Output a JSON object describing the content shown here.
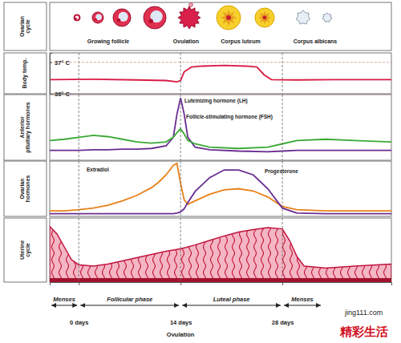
{
  "ovarian_cycle": {
    "label": "Ovarian cycle",
    "stages": [
      "Growing follicle",
      "Ovulation",
      "Corpus luteum",
      "Corpus albicans"
    ]
  },
  "chart_data": [
    {
      "type": "line",
      "ylabel": "Body temp.",
      "x": [
        -4,
        2,
        8,
        12,
        13.5,
        14,
        14.5,
        15.5,
        17,
        20,
        23,
        24.5,
        25.5,
        26.5,
        30,
        35,
        43
      ],
      "series": [
        {
          "color": "#d81b45",
          "values": [
            36.45,
            36.46,
            36.44,
            36.42,
            36.38,
            36.42,
            36.7,
            36.85,
            36.88,
            36.9,
            36.88,
            36.85,
            36.6,
            36.45,
            36.44,
            36.45,
            36.45
          ]
        }
      ],
      "xlim": [
        -4,
        43
      ],
      "xticks": [
        0,
        14,
        28
      ],
      "ylim": [
        36,
        37.3
      ],
      "yticks": [
        {
          "value": 37,
          "label": "37° C"
        },
        {
          "value": 36,
          "label": "36° C"
        }
      ],
      "grid": true,
      "tick_labels": "y"
    },
    {
      "type": "line",
      "ylabel": "Anterior pituitary hormones",
      "x": [
        -4,
        -2,
        0,
        2,
        4,
        6,
        8,
        10,
        12,
        13,
        13.5,
        14,
        14.5,
        15,
        16,
        18,
        22,
        26,
        28,
        30,
        34,
        38,
        43
      ],
      "series": [
        {
          "name": "Luteinizing hormone (LH)",
          "color": "#6a2c91",
          "values": [
            15,
            15,
            15,
            16,
            16,
            17,
            17,
            18,
            22,
            35,
            70,
            95,
            70,
            35,
            20,
            16,
            14,
            13,
            14,
            15,
            15,
            15,
            15
          ]
        },
        {
          "name": "Follicle-stimulating hormone (FSH)",
          "color": "#3aa935",
          "values": [
            30,
            32,
            35,
            38,
            36,
            32,
            28,
            26,
            28,
            35,
            42,
            48,
            40,
            30,
            25,
            20,
            18,
            20,
            25,
            30,
            32,
            30,
            28
          ]
        }
      ],
      "xlim": [
        -4,
        43
      ],
      "xticks": [
        0,
        14,
        28
      ],
      "ylim": [
        0,
        100
      ],
      "grid": true,
      "tick_labels": false
    },
    {
      "type": "line",
      "ylabel": "Ovarian hormones",
      "x": [
        -4,
        -2,
        0,
        2,
        4,
        6,
        8,
        10,
        11,
        12,
        13,
        13.5,
        14,
        14.5,
        15,
        16,
        18,
        20,
        22,
        24,
        26,
        28,
        30,
        34,
        38,
        43
      ],
      "series": [
        {
          "name": "Extradiol",
          "color": "#e8811a",
          "values": [
            10,
            10,
            12,
            15,
            20,
            28,
            38,
            52,
            62,
            75,
            92,
            96,
            60,
            30,
            22,
            28,
            40,
            48,
            50,
            46,
            35,
            18,
            12,
            10,
            10,
            10
          ]
        },
        {
          "name": "Progesterone",
          "color": "#6a2c91",
          "values": [
            5,
            5,
            5,
            5,
            5,
            5,
            5,
            5,
            5,
            5,
            5,
            6,
            8,
            14,
            25,
            45,
            70,
            84,
            84,
            75,
            50,
            15,
            6,
            5,
            5,
            5
          ]
        }
      ],
      "xlim": [
        -4,
        43
      ],
      "xticks": [
        0,
        14,
        28
      ],
      "ylim": [
        0,
        100
      ],
      "grid": true,
      "tick_labels": false
    },
    {
      "type": "area",
      "ylabel": "Uterine cycle",
      "x": [
        -4,
        -3,
        -2,
        -1,
        0,
        2,
        4,
        6,
        8,
        10,
        12,
        14,
        16,
        18,
        20,
        22,
        24,
        26,
        28,
        29,
        30,
        31,
        34,
        38,
        43
      ],
      "series": [
        {
          "color": "#f4b6c4",
          "values": [
            87,
            75,
            55,
            35,
            27,
            25,
            28,
            33,
            38,
            43,
            48,
            52,
            58,
            65,
            72,
            78,
            82,
            85,
            83,
            65,
            40,
            25,
            22,
            25,
            28
          ]
        }
      ],
      "xlim": [
        -4,
        43
      ],
      "xticks": [
        {
          "value": 0,
          "label": "0 days"
        },
        {
          "value": 14,
          "label": "14 days"
        },
        {
          "value": 28,
          "label": "28 days"
        }
      ],
      "ylim": [
        0,
        100
      ],
      "grid": true,
      "tick_labels": "x",
      "annotations": [
        {
          "text": "Ovulation",
          "x": 14
        }
      ]
    }
  ],
  "phases": [
    "Menses",
    "Follicular phase",
    "Luteal phase",
    "Menses"
  ],
  "watermark": [
    "jing111.com",
    "精彩生活"
  ]
}
